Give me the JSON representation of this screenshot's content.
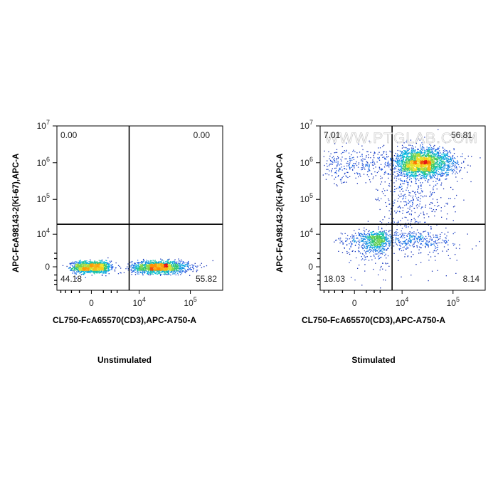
{
  "chart_data": [
    {
      "type": "scatter",
      "caption": "Unstimulated",
      "xlabel": "CL750-FcA65570(CD3),APC-A750-A",
      "ylabel": "APC-FcA98143-2(Ki-67),APC-A",
      "x_ticks": [
        {
          "base": "0",
          "exp": ""
        },
        {
          "base": "10",
          "exp": "4"
        },
        {
          "base": "10",
          "exp": "5"
        }
      ],
      "y_ticks": [
        {
          "base": "0",
          "exp": ""
        },
        {
          "base": "10",
          "exp": "4"
        },
        {
          "base": "10",
          "exp": "5"
        },
        {
          "base": "10",
          "exp": "6"
        },
        {
          "base": "10",
          "exp": "7"
        }
      ],
      "quadrants": {
        "top_left": "0.00",
        "top_right": "0.00",
        "bottom_left": "44.18",
        "bottom_right": "55.82"
      },
      "gate": {
        "x": 6000,
        "y": 20000
      },
      "populations": [
        {
          "x_center": 0,
          "x_sd": 900,
          "y_center": 0,
          "y_sd": 350,
          "weight": 0.44
        },
        {
          "x_center": 25000,
          "x_sd_log": 0.28,
          "y_center": 0,
          "y_sd": 350,
          "weight": 0.56
        }
      ]
    },
    {
      "type": "scatter",
      "caption": "Stimulated",
      "xlabel": "CL750-FcA65570(CD3),APC-A750-A",
      "ylabel": "APC-FcA98143-2(Ki-67),APC-A",
      "x_ticks": [
        {
          "base": "0",
          "exp": ""
        },
        {
          "base": "10",
          "exp": "4"
        },
        {
          "base": "10",
          "exp": "5"
        }
      ],
      "y_ticks": [
        {
          "base": "0",
          "exp": ""
        },
        {
          "base": "10",
          "exp": "4"
        },
        {
          "base": "10",
          "exp": "5"
        },
        {
          "base": "10",
          "exp": "6"
        },
        {
          "base": "10",
          "exp": "7"
        }
      ],
      "quadrants": {
        "top_left": "7.01",
        "top_right": "56.81",
        "bottom_left": "18.03",
        "bottom_right": "8.14"
      },
      "gate": {
        "x": 6000,
        "y": 20000
      },
      "watermark": "WWW.PTGLAB.COM",
      "populations": [
        {
          "x_center": 25000,
          "x_sd_log": 0.3,
          "y_center": 1000000,
          "y_sd_log": 0.2,
          "weight": 0.57
        },
        {
          "x_center": 0,
          "x_sd": 2000,
          "y_center": 900000,
          "y_sd_log": 0.25,
          "weight": 0.07
        },
        {
          "x_center": 2000,
          "x_sd": 1400,
          "y_center": 6000,
          "y_sd": 3000,
          "weight": 0.18
        },
        {
          "x_center": 20000,
          "x_sd_log": 0.35,
          "y_center": 6000,
          "y_sd": 3000,
          "weight": 0.08
        },
        {
          "x_center": 15000,
          "x_sd_log": 0.4,
          "y_center": 100000,
          "y_sd_log": 0.6,
          "weight": 0.1
        }
      ]
    }
  ]
}
